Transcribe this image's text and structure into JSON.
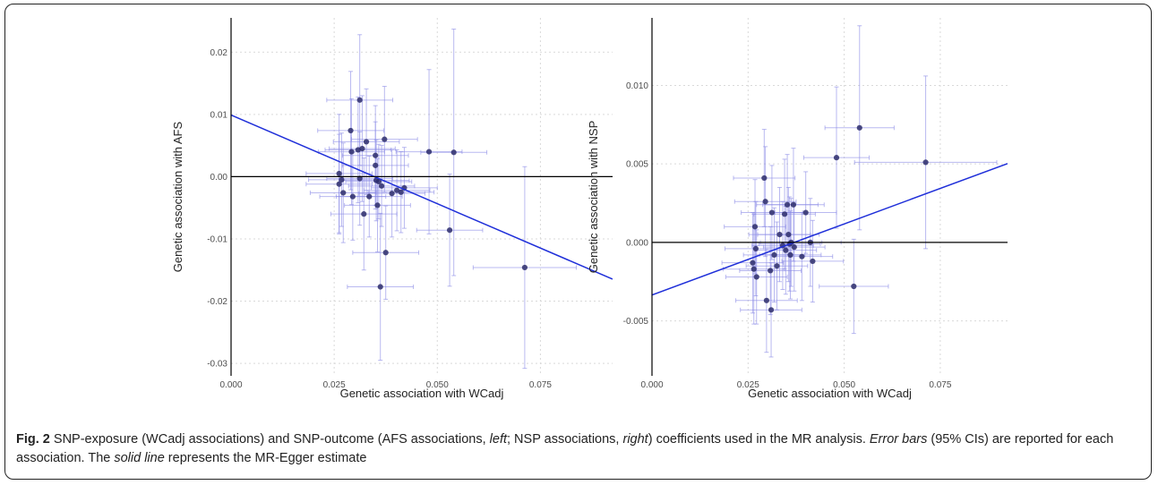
{
  "figure": {
    "label": "Fig. 2",
    "caption_parts": [
      {
        "text": " SNP-exposure (WCadj associations) and SNP-outcome (AFS associations, ",
        "style": "normal"
      },
      {
        "text": "left",
        "style": "italic"
      },
      {
        "text": "; NSP associations, ",
        "style": "normal"
      },
      {
        "text": "right",
        "style": "italic"
      },
      {
        "text": ") coefficients used in the MR analysis. ",
        "style": "normal"
      },
      {
        "text": "Error bars",
        "style": "italic"
      },
      {
        "text": " (95% CIs) are reported for each association. The ",
        "style": "normal"
      },
      {
        "text": "solid line",
        "style": "italic"
      },
      {
        "text": " represents the MR-Egger estimate",
        "style": "normal"
      }
    ]
  },
  "colors": {
    "points": "#2b2b6b",
    "error_bars": "#8a8ae6",
    "egger_line": "#1f2fd9",
    "zero_lines": "#000000",
    "grid": "#d9d9d9"
  },
  "chart_data": [
    {
      "type": "scatter",
      "xlabel": "Genetic association with WCadj",
      "ylabel": "Genetic association with AFS",
      "xlim": [
        0,
        0.0925
      ],
      "ylim": [
        -0.032,
        0.0255
      ],
      "x_ticks": [
        0.0,
        0.025,
        0.05,
        0.075
      ],
      "x_tick_labels": [
        "0.000",
        "0.025",
        "0.050",
        "0.075"
      ],
      "y_ticks": [
        -0.03,
        -0.02,
        -0.01,
        0.0,
        0.01,
        0.02
      ],
      "y_tick_labels": [
        "-0.03",
        "-0.02",
        "-0.01",
        "0.00",
        "0.01",
        "0.02"
      ],
      "grid": true,
      "egger_line": {
        "intercept": 0.0099,
        "slope": -0.285
      },
      "points": [
        {
          "x": 0.0262,
          "y": 0.0005,
          "xerr": 0.008,
          "yerr": 0.0095
        },
        {
          "x": 0.0262,
          "y": -0.0012,
          "xerr": 0.008,
          "yerr": 0.008
        },
        {
          "x": 0.0268,
          "y": -0.0005,
          "xerr": 0.008,
          "yerr": 0.0075
        },
        {
          "x": 0.0272,
          "y": -0.0026,
          "xerr": 0.008,
          "yerr": 0.008
        },
        {
          "x": 0.029,
          "y": 0.0074,
          "xerr": 0.008,
          "yerr": 0.0095
        },
        {
          "x": 0.0292,
          "y": 0.004,
          "xerr": 0.008,
          "yerr": 0.0085
        },
        {
          "x": 0.0295,
          "y": -0.0032,
          "xerr": 0.008,
          "yerr": 0.007
        },
        {
          "x": 0.0308,
          "y": 0.0043,
          "xerr": 0.008,
          "yerr": 0.0085
        },
        {
          "x": 0.0312,
          "y": 0.0123,
          "xerr": 0.008,
          "yerr": 0.0105
        },
        {
          "x": 0.0312,
          "y": -0.0003,
          "xerr": 0.008,
          "yerr": 0.0075
        },
        {
          "x": 0.0318,
          "y": 0.0045,
          "xerr": 0.008,
          "yerr": 0.0085
        },
        {
          "x": 0.0322,
          "y": -0.006,
          "xerr": 0.008,
          "yerr": 0.009
        },
        {
          "x": 0.0328,
          "y": 0.0056,
          "xerr": 0.008,
          "yerr": 0.0085
        },
        {
          "x": 0.0335,
          "y": -0.0032,
          "xerr": 0.008,
          "yerr": 0.0065
        },
        {
          "x": 0.035,
          "y": 0.0034,
          "xerr": 0.008,
          "yerr": 0.008
        },
        {
          "x": 0.035,
          "y": 0.0018,
          "xerr": 0.008,
          "yerr": 0.007
        },
        {
          "x": 0.0352,
          "y": -0.0006,
          "xerr": 0.008,
          "yerr": 0.0065
        },
        {
          "x": 0.0355,
          "y": -0.0046,
          "xerr": 0.008,
          "yerr": 0.0075
        },
        {
          "x": 0.0358,
          "y": -0.0008,
          "xerr": 0.008,
          "yerr": 0.006
        },
        {
          "x": 0.0362,
          "y": -0.0177,
          "xerr": 0.008,
          "yerr": 0.0118
        },
        {
          "x": 0.0365,
          "y": -0.0015,
          "xerr": 0.008,
          "yerr": 0.0065
        },
        {
          "x": 0.0372,
          "y": 0.006,
          "xerr": 0.008,
          "yerr": 0.0085
        },
        {
          "x": 0.0375,
          "y": -0.0122,
          "xerr": 0.008,
          "yerr": 0.0075
        },
        {
          "x": 0.039,
          "y": -0.0027,
          "xerr": 0.008,
          "yerr": 0.007
        },
        {
          "x": 0.0402,
          "y": -0.0022,
          "xerr": 0.008,
          "yerr": 0.0065
        },
        {
          "x": 0.0412,
          "y": -0.0025,
          "xerr": 0.008,
          "yerr": 0.0065
        },
        {
          "x": 0.042,
          "y": -0.0018,
          "xerr": 0.008,
          "yerr": 0.0065
        },
        {
          "x": 0.048,
          "y": 0.004,
          "xerr": 0.008,
          "yerr": 0.0132
        },
        {
          "x": 0.053,
          "y": -0.0086,
          "xerr": 0.008,
          "yerr": 0.009
        },
        {
          "x": 0.054,
          "y": 0.0039,
          "xerr": 0.008,
          "yerr": 0.0198
        },
        {
          "x": 0.0712,
          "y": -0.0146,
          "xerr": 0.0125,
          "yerr": 0.0162
        }
      ]
    },
    {
      "type": "scatter",
      "xlabel": "Genetic association with WCadj",
      "ylabel": "Genetic association with NSP",
      "xlim": [
        0,
        0.0925
      ],
      "ylim": [
        -0.0085,
        0.0143
      ],
      "x_ticks": [
        0.0,
        0.025,
        0.05,
        0.075
      ],
      "x_tick_labels": [
        "0.000",
        "0.025",
        "0.050",
        "0.075"
      ],
      "y_ticks": [
        -0.005,
        0.0,
        0.005,
        0.01
      ],
      "y_tick_labels": [
        "-0.005",
        "0.000",
        "0.005",
        "0.010"
      ],
      "grid": true,
      "egger_line": {
        "intercept": -0.00335,
        "slope": 0.0905
      },
      "points": [
        {
          "x": 0.0262,
          "y": -0.0013,
          "xerr": 0.008,
          "yerr": 0.0032
        },
        {
          "x": 0.0265,
          "y": -0.0017,
          "xerr": 0.008,
          "yerr": 0.0035
        },
        {
          "x": 0.0268,
          "y": 0.001,
          "xerr": 0.008,
          "yerr": 0.003
        },
        {
          "x": 0.027,
          "y": -0.0004,
          "xerr": 0.008,
          "yerr": 0.003
        },
        {
          "x": 0.0272,
          "y": -0.0022,
          "xerr": 0.008,
          "yerr": 0.003
        },
        {
          "x": 0.0292,
          "y": 0.0041,
          "xerr": 0.008,
          "yerr": 0.0031
        },
        {
          "x": 0.0295,
          "y": 0.0026,
          "xerr": 0.008,
          "yerr": 0.0035
        },
        {
          "x": 0.0298,
          "y": -0.0037,
          "xerr": 0.008,
          "yerr": 0.0033
        },
        {
          "x": 0.0308,
          "y": -0.0018,
          "xerr": 0.008,
          "yerr": 0.0028
        },
        {
          "x": 0.031,
          "y": -0.0043,
          "xerr": 0.008,
          "yerr": 0.003
        },
        {
          "x": 0.0312,
          "y": 0.0019,
          "xerr": 0.008,
          "yerr": 0.003
        },
        {
          "x": 0.0318,
          "y": -0.0008,
          "xerr": 0.008,
          "yerr": 0.003
        },
        {
          "x": 0.0325,
          "y": -0.0015,
          "xerr": 0.008,
          "yerr": 0.0028
        },
        {
          "x": 0.0332,
          "y": 0.0005,
          "xerr": 0.008,
          "yerr": 0.003
        },
        {
          "x": 0.034,
          "y": -0.0002,
          "xerr": 0.008,
          "yerr": 0.0028
        },
        {
          "x": 0.0345,
          "y": 0.0018,
          "xerr": 0.008,
          "yerr": 0.0035
        },
        {
          "x": 0.0348,
          "y": -0.0005,
          "xerr": 0.008,
          "yerr": 0.0028
        },
        {
          "x": 0.0352,
          "y": 0.0024,
          "xerr": 0.008,
          "yerr": 0.0032
        },
        {
          "x": 0.0355,
          "y": 0.0005,
          "xerr": 0.008,
          "yerr": 0.003
        },
        {
          "x": 0.0358,
          "y": -0.0001,
          "xerr": 0.008,
          "yerr": 0.003
        },
        {
          "x": 0.036,
          "y": -0.0008,
          "xerr": 0.008,
          "yerr": 0.0028
        },
        {
          "x": 0.0362,
          "y": 0.0,
          "xerr": 0.008,
          "yerr": 0.0028
        },
        {
          "x": 0.0368,
          "y": 0.0024,
          "xerr": 0.008,
          "yerr": 0.0036
        },
        {
          "x": 0.037,
          "y": -0.0003,
          "xerr": 0.008,
          "yerr": 0.0028
        },
        {
          "x": 0.039,
          "y": -0.0009,
          "xerr": 0.008,
          "yerr": 0.0028
        },
        {
          "x": 0.04,
          "y": 0.0019,
          "xerr": 0.008,
          "yerr": 0.0026
        },
        {
          "x": 0.0412,
          "y": 0.0,
          "xerr": 0.008,
          "yerr": 0.0028
        },
        {
          "x": 0.0418,
          "y": -0.0012,
          "xerr": 0.008,
          "yerr": 0.0026
        },
        {
          "x": 0.048,
          "y": 0.0054,
          "xerr": 0.0085,
          "yerr": 0.0045
        },
        {
          "x": 0.0525,
          "y": -0.0028,
          "xerr": 0.009,
          "yerr": 0.003
        },
        {
          "x": 0.054,
          "y": 0.0073,
          "xerr": 0.009,
          "yerr": 0.0065
        },
        {
          "x": 0.0712,
          "y": 0.0051,
          "xerr": 0.0185,
          "yerr": 0.0055
        }
      ]
    }
  ]
}
